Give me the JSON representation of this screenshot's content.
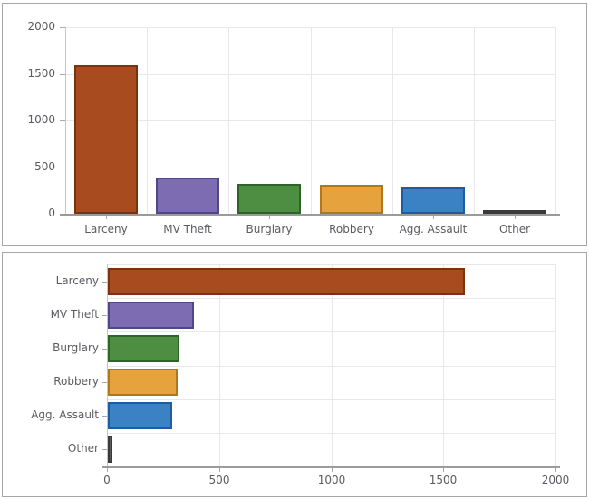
{
  "page": {
    "background": "#ffffff"
  },
  "colors": {
    "panel_border": "#a6a6a6",
    "grid_line": "#e8e8e8",
    "axis_line": "#c6c6c6",
    "baseline": "#9b9b9b",
    "tick": "#a8a8a8",
    "label_text": "#5a5a62"
  },
  "chart_data": [
    {
      "type": "bar",
      "orientation": "vertical",
      "title": "",
      "xlabel": "",
      "ylabel": "",
      "categories": [
        "Larceny",
        "MV Theft",
        "Burglary",
        "Robbery",
        "Agg. Assault",
        "Other"
      ],
      "values": [
        1590,
        385,
        320,
        310,
        285,
        20
      ],
      "ylim": [
        0,
        2000
      ],
      "yticks": [
        0,
        500,
        1000,
        1500,
        2000
      ],
      "grid": true,
      "legend": false,
      "bar_colors": [
        {
          "fill": "#a84b1e",
          "border": "#7a3311"
        },
        {
          "fill": "#7d6cb2",
          "border": "#52468a"
        },
        {
          "fill": "#4e8e43",
          "border": "#2d6428"
        },
        {
          "fill": "#e6a23c",
          "border": "#b0781e"
        },
        {
          "fill": "#3b82c4",
          "border": "#1d5c9e"
        },
        {
          "fill": "#5b5b5b",
          "border": "#3a3a3a"
        }
      ]
    },
    {
      "type": "bar",
      "orientation": "horizontal",
      "title": "",
      "xlabel": "",
      "ylabel": "",
      "categories": [
        "Larceny",
        "MV Theft",
        "Burglary",
        "Robbery",
        "Agg. Assault",
        "Other"
      ],
      "values": [
        1590,
        385,
        320,
        310,
        285,
        20
      ],
      "xlim": [
        0,
        2000
      ],
      "xticks": [
        0,
        500,
        1000,
        1500,
        2000
      ],
      "grid": true,
      "legend": false,
      "bar_colors": [
        {
          "fill": "#a84b1e",
          "border": "#7a3311"
        },
        {
          "fill": "#7d6cb2",
          "border": "#52468a"
        },
        {
          "fill": "#4e8e43",
          "border": "#2d6428"
        },
        {
          "fill": "#e6a23c",
          "border": "#b0781e"
        },
        {
          "fill": "#3b82c4",
          "border": "#1d5c9e"
        },
        {
          "fill": "#5b5b5b",
          "border": "#3a3a3a"
        }
      ]
    }
  ]
}
